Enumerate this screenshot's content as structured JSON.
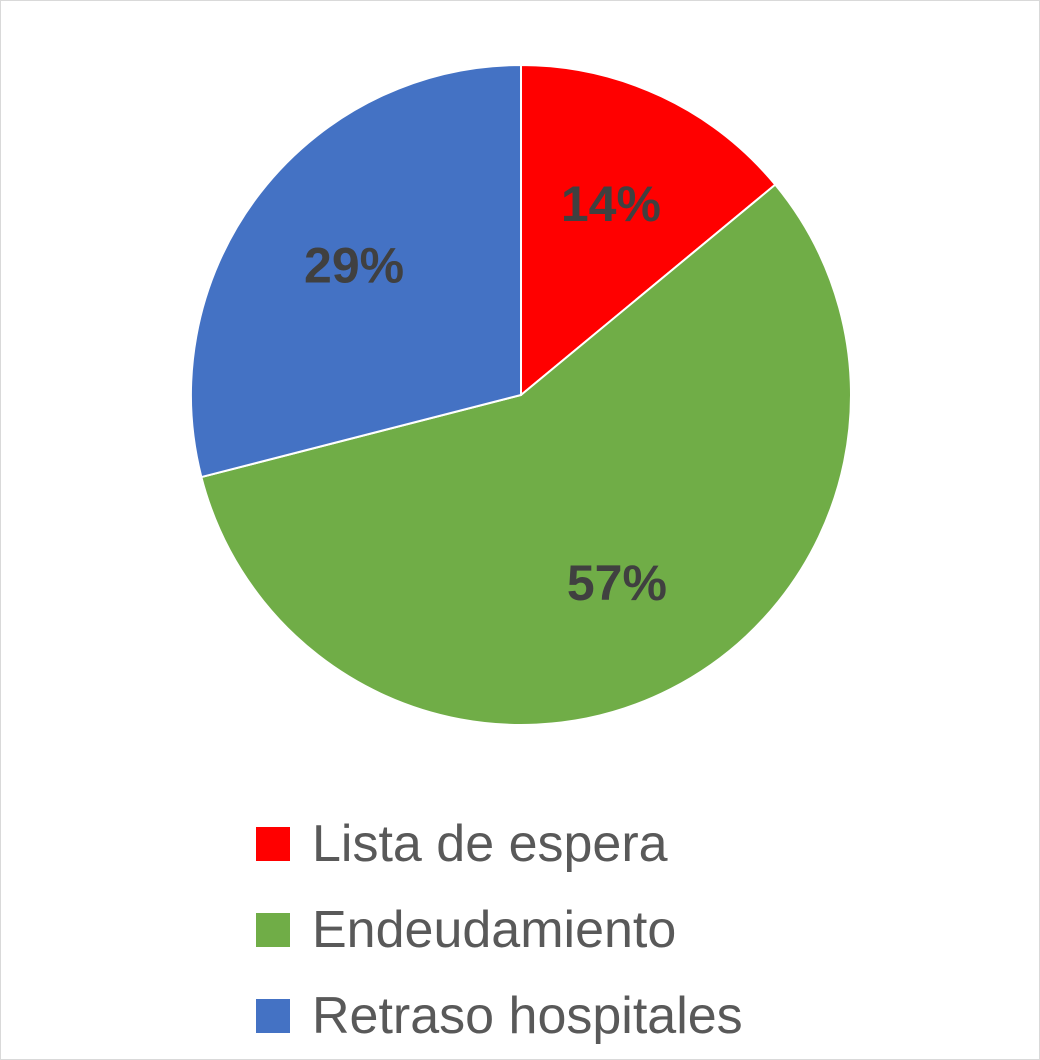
{
  "chart_data": {
    "type": "pie",
    "title": "",
    "categories": [
      "Lista de espera",
      "Endeudamiento",
      "Retraso hospitales"
    ],
    "values": [
      14,
      57,
      29
    ],
    "data_labels": [
      "14%",
      "57%",
      "29%"
    ],
    "colors": [
      "#ff0000",
      "#70ad47",
      "#4472c4"
    ],
    "legend_position": "bottom"
  }
}
